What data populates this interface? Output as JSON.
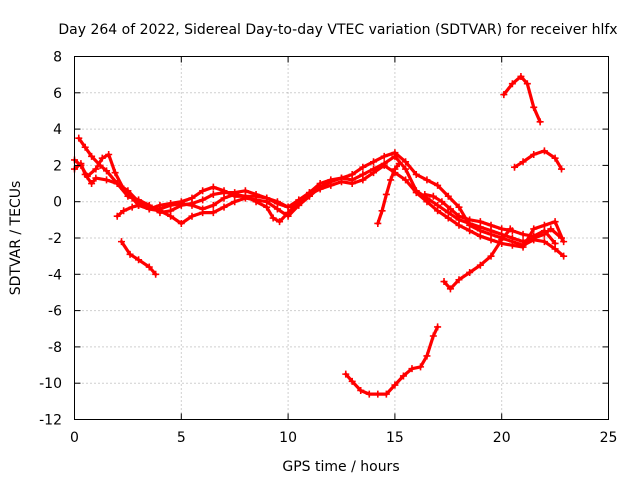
{
  "chart_data": {
    "type": "scatter",
    "title": "Day 264 of 2022, Sidereal Day-to-day VTEC variation (SDTVAR) for receiver hlfx",
    "xlabel": "GPS time / hours",
    "ylabel": "SDTVAR / TECUs",
    "xlim": [
      0,
      25
    ],
    "ylim": [
      -12,
      8
    ],
    "xticks": [
      0,
      5,
      10,
      15,
      20,
      25
    ],
    "yticks": [
      -12,
      -10,
      -8,
      -6,
      -4,
      -2,
      0,
      2,
      4,
      6,
      8
    ],
    "grid": true,
    "legend": "none",
    "marker": "plus",
    "color": "#ff0000",
    "series": [
      {
        "name": "track-1",
        "points": [
          [
            0.0,
            1.8
          ],
          [
            0.3,
            2.1
          ],
          [
            0.5,
            1.5
          ],
          [
            0.8,
            1.0
          ],
          [
            1.0,
            1.3
          ],
          [
            1.5,
            1.2
          ],
          [
            2.0,
            1.0
          ],
          [
            2.5,
            0.3
          ],
          [
            3.0,
            0.1
          ],
          [
            3.5,
            -0.2
          ],
          [
            4.0,
            -0.6
          ],
          [
            4.5,
            -0.5
          ],
          [
            5.0,
            -0.2
          ],
          [
            5.5,
            -0.1
          ],
          [
            6.0,
            0.1
          ],
          [
            6.5,
            0.4
          ],
          [
            7.0,
            0.5
          ],
          [
            7.5,
            0.5
          ],
          [
            8.0,
            0.6
          ],
          [
            8.5,
            0.4
          ],
          [
            9.0,
            0.2
          ],
          [
            9.5,
            -0.1
          ],
          [
            10.0,
            -0.3
          ],
          [
            10.5,
            0.1
          ],
          [
            11.0,
            0.5
          ],
          [
            11.5,
            1.0
          ],
          [
            12.0,
            1.2
          ],
          [
            12.5,
            1.3
          ],
          [
            13.0,
            1.2
          ],
          [
            13.5,
            1.5
          ],
          [
            14.0,
            1.8
          ],
          [
            14.5,
            2.1
          ],
          [
            15.0,
            2.5
          ],
          [
            15.5,
            1.8
          ],
          [
            16.0,
            0.6
          ],
          [
            16.5,
            0.2
          ],
          [
            17.0,
            -0.2
          ],
          [
            17.5,
            -0.6
          ],
          [
            18.0,
            -1.0
          ],
          [
            18.5,
            -1.2
          ],
          [
            19.0,
            -1.4
          ],
          [
            19.5,
            -1.6
          ],
          [
            20.0,
            -1.8
          ],
          [
            20.5,
            -2.0
          ],
          [
            21.0,
            -2.2
          ],
          [
            21.5,
            -2.0
          ],
          [
            22.0,
            -1.8
          ],
          [
            22.3,
            -1.5
          ],
          [
            22.8,
            -2.0
          ]
        ]
      },
      {
        "name": "track-2",
        "points": [
          [
            0.2,
            3.5
          ],
          [
            0.5,
            3.0
          ],
          [
            0.8,
            2.5
          ],
          [
            1.2,
            2.0
          ],
          [
            1.5,
            1.7
          ],
          [
            2.0,
            1.0
          ],
          [
            2.5,
            0.6
          ],
          [
            3.0,
            0.0
          ],
          [
            3.5,
            -0.4
          ],
          [
            4.0,
            -0.5
          ],
          [
            4.5,
            -0.8
          ],
          [
            5.0,
            -1.2
          ],
          [
            5.5,
            -0.8
          ],
          [
            6.0,
            -0.6
          ],
          [
            6.5,
            -0.6
          ],
          [
            7.0,
            -0.3
          ],
          [
            7.5,
            0.0
          ],
          [
            8.0,
            0.2
          ],
          [
            8.5,
            0.1
          ],
          [
            9.0,
            0.0
          ],
          [
            9.5,
            -0.4
          ],
          [
            10.0,
            -0.8
          ],
          [
            10.5,
            -0.2
          ],
          [
            11.0,
            0.3
          ],
          [
            11.5,
            0.8
          ],
          [
            12.0,
            1.1
          ],
          [
            12.5,
            1.3
          ],
          [
            13.0,
            1.5
          ],
          [
            13.5,
            1.9
          ],
          [
            14.0,
            2.2
          ],
          [
            14.5,
            2.5
          ],
          [
            15.0,
            2.7
          ],
          [
            15.5,
            2.2
          ],
          [
            16.0,
            1.5
          ],
          [
            16.5,
            1.2
          ],
          [
            17.0,
            0.9
          ],
          [
            17.5,
            0.3
          ],
          [
            18.0,
            -0.3
          ],
          [
            18.5,
            -1.3
          ],
          [
            19.0,
            -1.6
          ],
          [
            19.5,
            -1.8
          ],
          [
            20.0,
            -2.0
          ],
          [
            20.5,
            -2.2
          ],
          [
            21.0,
            -2.4
          ],
          [
            21.5,
            -2.1
          ],
          [
            22.0,
            -2.2
          ],
          [
            22.5,
            -2.6
          ],
          [
            22.9,
            -3.0
          ]
        ]
      },
      {
        "name": "track-3",
        "points": [
          [
            0.0,
            2.3
          ],
          [
            0.3,
            2.0
          ],
          [
            0.6,
            1.4
          ],
          [
            1.0,
            1.8
          ],
          [
            1.3,
            2.4
          ],
          [
            1.6,
            2.6
          ],
          [
            1.9,
            1.6
          ],
          [
            2.3,
            0.7
          ],
          [
            2.7,
            0.2
          ],
          [
            3.0,
            -0.2
          ],
          [
            3.5,
            -0.4
          ],
          [
            4.0,
            -0.2
          ],
          [
            4.5,
            -0.1
          ],
          [
            5.0,
            0.0
          ],
          [
            5.5,
            0.2
          ],
          [
            6.0,
            0.6
          ],
          [
            6.5,
            0.8
          ],
          [
            7.0,
            0.6
          ],
          [
            7.5,
            0.3
          ],
          [
            8.0,
            0.3
          ],
          [
            8.5,
            0.3
          ],
          [
            9.0,
            0.2
          ],
          [
            9.5,
            0.0
          ],
          [
            10.0,
            -0.3
          ],
          [
            10.5,
            0.0
          ],
          [
            11.0,
            0.4
          ],
          [
            11.5,
            0.7
          ],
          [
            12.0,
            0.9
          ],
          [
            12.5,
            1.1
          ],
          [
            13.0,
            1.0
          ],
          [
            13.5,
            1.2
          ],
          [
            14.0,
            1.6
          ],
          [
            14.5,
            2.0
          ],
          [
            15.0,
            1.6
          ],
          [
            15.5,
            1.2
          ],
          [
            16.0,
            0.5
          ],
          [
            16.5,
            0.0
          ],
          [
            17.0,
            -0.5
          ],
          [
            17.5,
            -0.9
          ],
          [
            18.0,
            -1.3
          ],
          [
            18.5,
            -1.6
          ],
          [
            19.0,
            -1.9
          ],
          [
            19.5,
            -2.1
          ],
          [
            20.0,
            -2.3
          ],
          [
            20.5,
            -2.4
          ],
          [
            21.0,
            -2.5
          ],
          [
            21.5,
            -1.5
          ],
          [
            22.0,
            -1.3
          ],
          [
            22.5,
            -1.1
          ],
          [
            22.9,
            -2.2
          ]
        ]
      },
      {
        "name": "track-4",
        "points": [
          [
            2.0,
            -0.8
          ],
          [
            2.3,
            -0.5
          ],
          [
            2.7,
            -0.3
          ],
          [
            3.0,
            -0.2
          ],
          [
            3.5,
            -0.4
          ],
          [
            4.0,
            -0.4
          ],
          [
            4.5,
            -0.2
          ],
          [
            5.0,
            -0.1
          ],
          [
            5.5,
            -0.2
          ],
          [
            6.0,
            -0.4
          ],
          [
            6.5,
            -0.2
          ],
          [
            7.0,
            0.2
          ],
          [
            7.5,
            0.4
          ],
          [
            8.0,
            0.3
          ],
          [
            8.5,
            0.0
          ],
          [
            9.0,
            -0.3
          ],
          [
            9.3,
            -0.9
          ],
          [
            9.6,
            -1.1
          ],
          [
            10.0,
            -0.6
          ],
          [
            10.5,
            0.0
          ],
          [
            11.0,
            0.5
          ],
          [
            11.5,
            0.8
          ]
        ]
      },
      {
        "name": "track-5",
        "points": [
          [
            14.2,
            -1.2
          ],
          [
            14.4,
            -0.5
          ],
          [
            14.6,
            0.4
          ],
          [
            14.8,
            1.2
          ],
          [
            15.0,
            1.8
          ],
          [
            15.2,
            2.1
          ]
        ]
      },
      {
        "name": "track-6",
        "points": [
          [
            16.4,
            0.4
          ],
          [
            16.8,
            0.3
          ],
          [
            17.2,
            0.0
          ],
          [
            17.6,
            -0.4
          ],
          [
            18.0,
            -0.8
          ],
          [
            18.5,
            -1.0
          ],
          [
            19.0,
            -1.1
          ],
          [
            19.5,
            -1.3
          ],
          [
            20.0,
            -1.5
          ],
          [
            20.5,
            -1.6
          ],
          [
            21.0,
            -1.8
          ],
          [
            21.5,
            -1.9
          ],
          [
            22.0,
            -1.6
          ],
          [
            22.5,
            -2.3
          ]
        ]
      },
      {
        "name": "track-7",
        "points": [
          [
            2.2,
            -2.2
          ],
          [
            2.6,
            -2.9
          ],
          [
            3.0,
            -3.2
          ],
          [
            3.5,
            -3.6
          ],
          [
            3.8,
            -4.0
          ]
        ]
      },
      {
        "name": "track-8",
        "points": [
          [
            12.7,
            -9.5
          ],
          [
            13.0,
            -9.9
          ],
          [
            13.4,
            -10.4
          ],
          [
            13.8,
            -10.6
          ],
          [
            14.2,
            -10.6
          ],
          [
            14.6,
            -10.6
          ],
          [
            15.0,
            -10.1
          ],
          [
            15.4,
            -9.6
          ],
          [
            15.8,
            -9.2
          ],
          [
            16.2,
            -9.1
          ],
          [
            16.5,
            -8.5
          ],
          [
            16.8,
            -7.4
          ],
          [
            17.0,
            -6.9
          ]
        ]
      },
      {
        "name": "track-9",
        "points": [
          [
            17.3,
            -4.4
          ],
          [
            17.6,
            -4.8
          ],
          [
            18.0,
            -4.3
          ],
          [
            18.5,
            -3.9
          ],
          [
            19.0,
            -3.5
          ],
          [
            19.5,
            -3.0
          ],
          [
            20.0,
            -2.1
          ],
          [
            20.4,
            -1.5
          ]
        ]
      },
      {
        "name": "track-10",
        "points": [
          [
            20.1,
            5.9
          ],
          [
            20.5,
            6.5
          ],
          [
            20.9,
            6.9
          ],
          [
            21.2,
            6.5
          ],
          [
            21.5,
            5.2
          ],
          [
            21.8,
            4.4
          ]
        ]
      },
      {
        "name": "track-11",
        "points": [
          [
            20.6,
            1.9
          ],
          [
            21.0,
            2.2
          ],
          [
            21.5,
            2.6
          ],
          [
            22.0,
            2.8
          ],
          [
            22.5,
            2.4
          ],
          [
            22.8,
            1.8
          ]
        ]
      }
    ]
  }
}
